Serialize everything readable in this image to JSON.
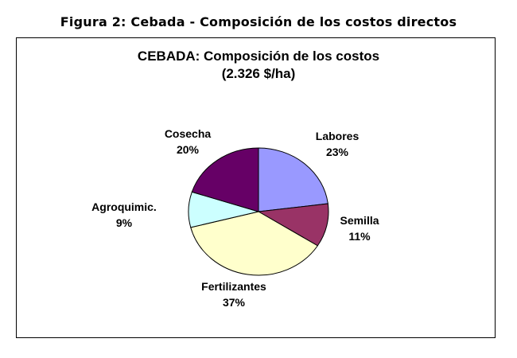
{
  "figure_caption": "Figura 2: Cebada - Composición de los costos directos",
  "chart_data": {
    "type": "pie",
    "title": "CEBADA: Composición de los costos",
    "subtitle": "(2.326 $/ha)",
    "slices": [
      {
        "label": "Labores",
        "value": 23,
        "display": "23%",
        "color": "#9999FF"
      },
      {
        "label": "Semilla",
        "value": 11,
        "display": "11%",
        "color": "#993366"
      },
      {
        "label": "Fertilizantes",
        "value": 37,
        "display": "37%",
        "color": "#FFFFCC"
      },
      {
        "label": "Agroquimic.",
        "value": 9,
        "display": "9%",
        "color": "#CCFFFF"
      },
      {
        "label": "Cosecha",
        "value": 20,
        "display": "20%",
        "color": "#660066"
      }
    ]
  }
}
